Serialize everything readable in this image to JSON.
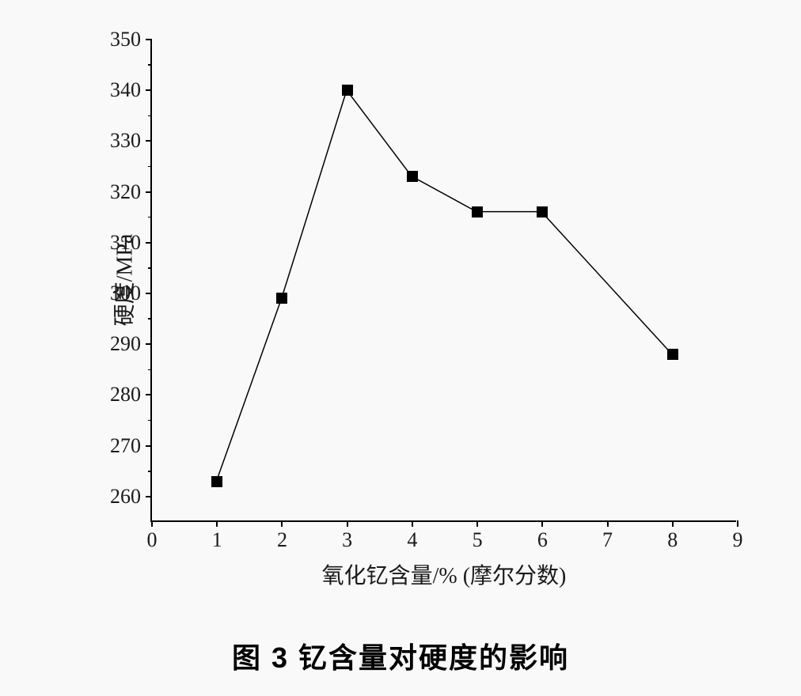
{
  "chart": {
    "type": "line",
    "x_values": [
      1,
      2,
      3,
      4,
      5,
      6,
      8
    ],
    "y_values": [
      263,
      299,
      340,
      323,
      316,
      316,
      288
    ],
    "marker_style": "square",
    "marker_size": 14,
    "marker_color": "#000000",
    "line_color": "#000000",
    "line_width": 1.5,
    "background_color": "#faf9fa",
    "xlim": [
      0,
      9
    ],
    "ylim": [
      255,
      350
    ],
    "x_ticks": [
      0,
      1,
      2,
      3,
      4,
      5,
      6,
      7,
      8,
      9
    ],
    "y_ticks": [
      260,
      270,
      280,
      290,
      300,
      310,
      320,
      330,
      340,
      350
    ],
    "y_minor_ticks": [
      265,
      275,
      285,
      295,
      305,
      315,
      325,
      335,
      345
    ],
    "x_label": "氧化钇含量/% (摩尔分数)",
    "y_label": "硬度/MPa",
    "axis_color": "#000000",
    "axis_width": 2,
    "tick_fontsize": 26,
    "label_fontsize": 28,
    "tick_color": "#1a1a1a"
  },
  "caption": {
    "text": "图 3  钇含量对硬度的影响",
    "fontsize": 36,
    "fontweight": "bold",
    "color": "#000000"
  }
}
